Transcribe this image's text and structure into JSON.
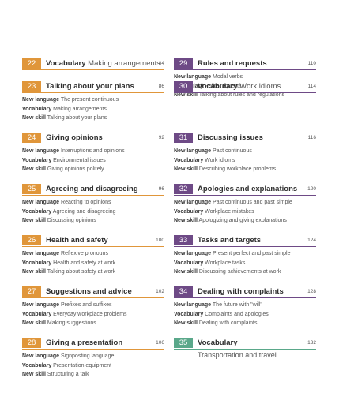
{
  "colors": {
    "orange": "#e0963a",
    "purple": "#6e4a86",
    "teal": "#5aa88a"
  },
  "left": [
    {
      "num": "22",
      "title": "Vocabulary",
      "subtitle": "Making arrangements",
      "page": "84",
      "color": "orange",
      "lines": []
    },
    {
      "num": "23",
      "title": "Talking about your plans",
      "subtitle": "",
      "page": "86",
      "color": "orange",
      "lines": [
        {
          "label": "New language",
          "text": "The present continuous"
        },
        {
          "label": "Vocabulary",
          "text": "Making arrangements"
        },
        {
          "label": "New skill",
          "text": "Talking about your plans"
        }
      ]
    },
    {
      "num": "24",
      "title": "Giving opinions",
      "subtitle": "",
      "page": "92",
      "color": "orange",
      "lines": [
        {
          "label": "New language",
          "text": "Interruptions and opinions"
        },
        {
          "label": "Vocabulary",
          "text": "Environmental issues"
        },
        {
          "label": "New skill",
          "text": "Giving opinions politely"
        }
      ]
    },
    {
      "num": "25",
      "title": "Agreeing and disagreeing",
      "subtitle": "",
      "page": "96",
      "color": "orange",
      "lines": [
        {
          "label": "New language",
          "text": "Reacting to opinions"
        },
        {
          "label": "Vocabulary",
          "text": "Agreeing and disagreeing"
        },
        {
          "label": "New skill",
          "text": "Discussing opinions"
        }
      ]
    },
    {
      "num": "26",
      "title": "Health and safety",
      "subtitle": "",
      "page": "100",
      "color": "orange",
      "lines": [
        {
          "label": "New language",
          "text": "Reflexive pronouns"
        },
        {
          "label": "Vocabulary",
          "text": "Health and safety at work"
        },
        {
          "label": "New skill",
          "text": "Talking about safety at work"
        }
      ]
    },
    {
      "num": "27",
      "title": "Suggestions and advice",
      "subtitle": "",
      "page": "102",
      "color": "orange",
      "lines": [
        {
          "label": "New language",
          "text": "Prefixes and suffixes"
        },
        {
          "label": "Vocabulary",
          "text": "Everyday workplace problems"
        },
        {
          "label": "New skill",
          "text": "Making suggestions"
        }
      ]
    },
    {
      "num": "28",
      "title": "Giving a presentation",
      "subtitle": "",
      "page": "106",
      "color": "orange",
      "lines": [
        {
          "label": "New language",
          "text": "Signposting language"
        },
        {
          "label": "Vocabulary",
          "text": "Presentation equipment"
        },
        {
          "label": "New skill",
          "text": "Structuring a talk"
        }
      ]
    }
  ],
  "right": [
    {
      "num": "29",
      "title": "Rules and requests",
      "subtitle": "",
      "page": "110",
      "color": "purple",
      "lines": [
        {
          "label": "New language",
          "text": "Modal verbs"
        },
        {
          "label": "Vocabulary",
          "text": "Polite requests"
        },
        {
          "label": "New skill",
          "text": "Talking about rules and regulations"
        }
      ]
    },
    {
      "num": "30",
      "title": "Vocabulary",
      "subtitle": "Work idioms",
      "page": "114",
      "color": "purple",
      "lines": []
    },
    {
      "num": "31",
      "title": "Discussing issues",
      "subtitle": "",
      "page": "116",
      "color": "purple",
      "lines": [
        {
          "label": "New language",
          "text": "Past continuous"
        },
        {
          "label": "Vocabulary",
          "text": "Work idioms"
        },
        {
          "label": "New skill",
          "text": "Describing workplace problems"
        }
      ]
    },
    {
      "num": "32",
      "title": "Apologies and explanations",
      "subtitle": "",
      "page": "120",
      "color": "purple",
      "lines": [
        {
          "label": "New language",
          "text": "Past continuous and past simple"
        },
        {
          "label": "Vocabulary",
          "text": "Workplace mistakes"
        },
        {
          "label": "New skill",
          "text": "Apologizing and giving explanations"
        }
      ]
    },
    {
      "num": "33",
      "title": "Tasks and targets",
      "subtitle": "",
      "page": "124",
      "color": "purple",
      "lines": [
        {
          "label": "New language",
          "text": "Present perfect and past simple"
        },
        {
          "label": "Vocabulary",
          "text": "Workplace tasks"
        },
        {
          "label": "New skill",
          "text": "Discussing achievements at work"
        }
      ]
    },
    {
      "num": "34",
      "title": "Dealing with complaints",
      "subtitle": "",
      "page": "128",
      "color": "purple",
      "lines": [
        {
          "label": "New language",
          "text": "The future with \"will\""
        },
        {
          "label": "Vocabulary",
          "text": "Complaints and apologies"
        },
        {
          "label": "New skill",
          "text": "Dealing with complaints"
        }
      ]
    },
    {
      "num": "35",
      "title": "Vocabulary",
      "subtitle": "",
      "second": "Transportation and travel",
      "page": "132",
      "color": "teal",
      "lines": []
    }
  ]
}
